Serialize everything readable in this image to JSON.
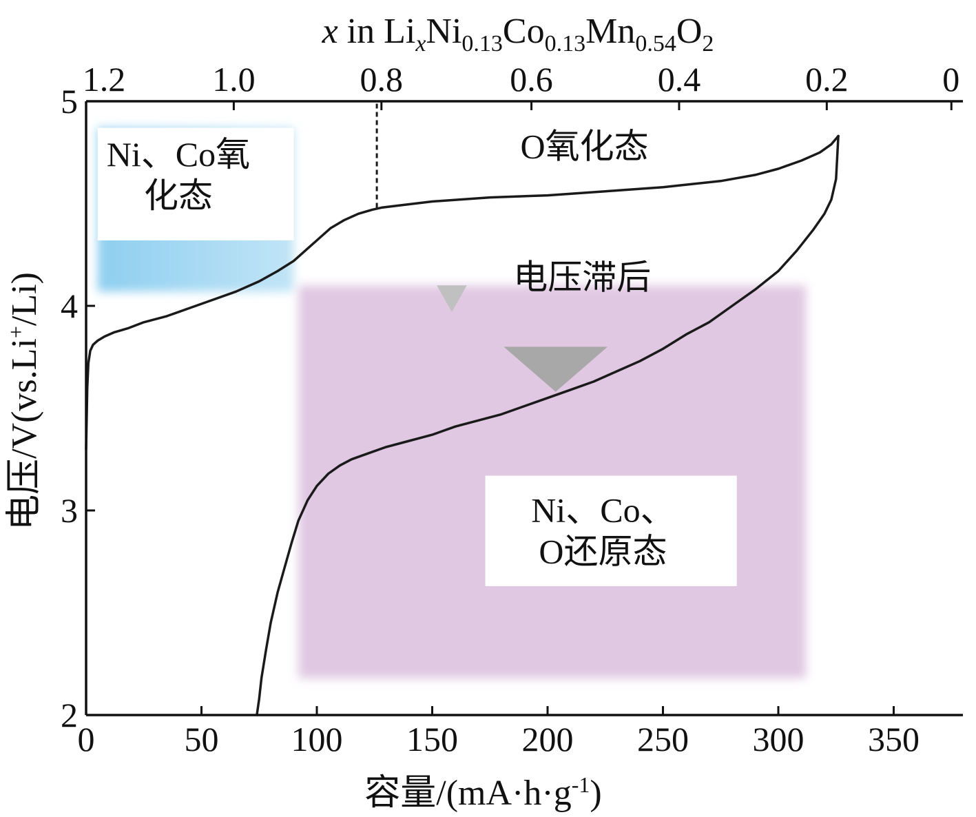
{
  "chart_data": {
    "type": "line",
    "xlabel": "容量/(mA·h·g",
    "xlabel_sup": "-1",
    "xlabel_tail": ")",
    "ylabel": "电压/V(vs.Li",
    "ylabel_sup": "+",
    "ylabel_tail": "/Li)",
    "top_axis": {
      "label_parts": [
        "x",
        " in Li",
        "x",
        "Ni",
        "0.13",
        "Co",
        "0.13",
        "Mn",
        "0.54",
        "O",
        "2"
      ],
      "ticks": [
        {
          "label": "1.2",
          "capacity": 0
        },
        {
          "label": "1.0",
          "capacity": 64
        },
        {
          "label": "0.8",
          "capacity": 128
        },
        {
          "label": "0.6",
          "capacity": 193
        },
        {
          "label": "0.4",
          "capacity": 257
        },
        {
          "label": "0.2",
          "capacity": 321
        },
        {
          "label": "0",
          "capacity": 375
        }
      ]
    },
    "xlim": [
      0,
      380
    ],
    "ylim": [
      2,
      5
    ],
    "xticks": [
      0,
      50,
      100,
      150,
      200,
      250,
      300,
      350
    ],
    "xtick_labels": [
      "0",
      "50",
      "100",
      "150",
      "200",
      "250",
      "300",
      "350"
    ],
    "yticks": [
      2,
      3,
      4,
      5
    ],
    "ytick_labels": [
      "2",
      "3",
      "4",
      "5"
    ],
    "series": [
      {
        "role": "charge",
        "x": [
          0,
          0.5,
          1,
          1.8,
          3,
          5,
          8,
          12,
          18,
          25,
          35,
          45,
          55,
          65,
          75,
          83,
          90,
          96,
          101,
          106,
          112,
          118,
          124,
          128,
          135,
          150,
          175,
          200,
          225,
          250,
          275,
          290,
          300,
          310,
          318,
          323,
          326
        ],
        "y": [
          3.3,
          3.6,
          3.72,
          3.78,
          3.81,
          3.83,
          3.85,
          3.87,
          3.89,
          3.92,
          3.95,
          3.99,
          4.03,
          4.07,
          4.12,
          4.17,
          4.22,
          4.28,
          4.33,
          4.38,
          4.42,
          4.45,
          4.47,
          4.48,
          4.49,
          4.51,
          4.53,
          4.54,
          4.56,
          4.58,
          4.61,
          4.64,
          4.67,
          4.71,
          4.75,
          4.79,
          4.83
        ]
      },
      {
        "role": "discharge",
        "x": [
          326,
          325.5,
          325,
          323,
          320,
          315,
          308,
          300,
          290,
          280,
          270,
          260,
          250,
          240,
          230,
          220,
          210,
          200,
          190,
          180,
          170,
          160,
          150,
          140,
          130,
          120,
          115,
          110,
          105,
          100,
          96,
          92,
          89,
          86,
          83,
          80,
          78,
          76,
          75,
          74
        ],
        "y": [
          4.83,
          4.72,
          4.62,
          4.52,
          4.45,
          4.37,
          4.27,
          4.17,
          4.08,
          4.0,
          3.92,
          3.86,
          3.79,
          3.73,
          3.68,
          3.63,
          3.59,
          3.55,
          3.51,
          3.47,
          3.44,
          3.41,
          3.37,
          3.34,
          3.31,
          3.27,
          3.25,
          3.22,
          3.18,
          3.12,
          3.05,
          2.95,
          2.84,
          2.72,
          2.6,
          2.45,
          2.32,
          2.18,
          2.08,
          2.0
        ]
      }
    ],
    "reference_line": {
      "capacity": 126,
      "style": "dashed",
      "from_voltage": 4.48,
      "to_voltage": 5.0
    },
    "markers": [
      {
        "shape": "triangle-down",
        "color": "#c0c0c0",
        "x_range": [
          152,
          165
        ],
        "y_range": [
          3.97,
          4.1
        ]
      },
      {
        "shape": "triangle-down",
        "color": "#a8a8a8",
        "x_range": [
          181,
          226
        ],
        "y_range": [
          3.58,
          3.8
        ]
      }
    ],
    "regions": [
      {
        "color": "#8ecff0",
        "x_range": [
          5,
          90
        ],
        "y_range": [
          4.07,
          4.87
        ]
      },
      {
        "color": "#e0c8e2",
        "x_range": [
          92,
          312
        ],
        "y_range": [
          2.18,
          4.1
        ]
      }
    ],
    "annotations": [
      {
        "text": [
          "Ni、Co氧",
          "化态"
        ],
        "x": 40,
        "y": 4.64,
        "box_x": [
          5,
          90
        ],
        "box_y": [
          4.32,
          4.87
        ]
      },
      {
        "text": [
          "O氧化态"
        ],
        "x": 216,
        "y": 4.78
      },
      {
        "text": [
          "电压滞后"
        ],
        "x": 215,
        "y": 4.14
      },
      {
        "text": [
          "Ni、Co、",
          "O还原态"
        ],
        "x": 224,
        "y": 2.9,
        "box_x": [
          173,
          282
        ],
        "box_y": [
          2.63,
          3.17
        ]
      }
    ]
  }
}
